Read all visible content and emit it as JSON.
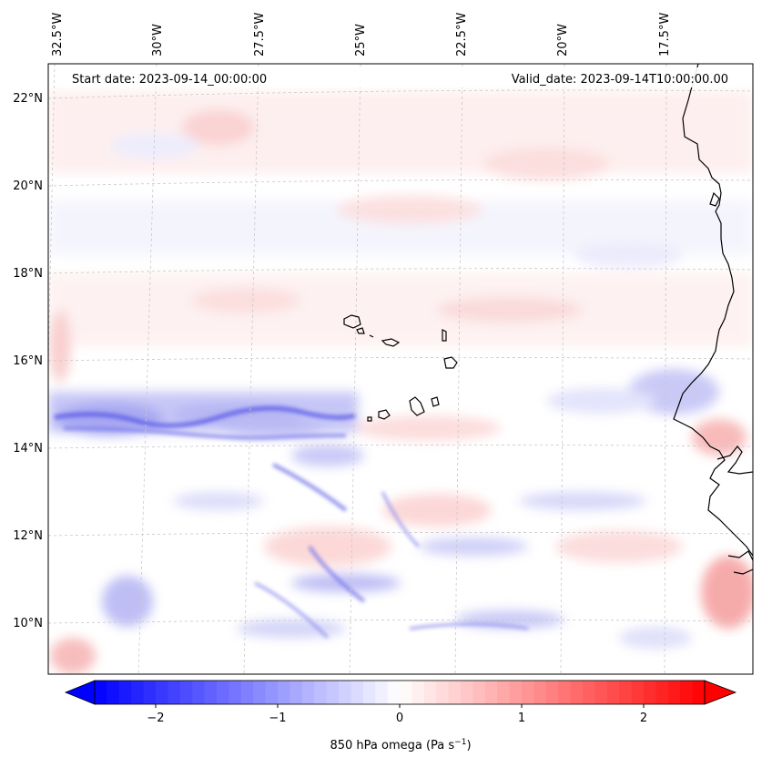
{
  "map": {
    "lon_labels": [
      "32.5°W",
      "30°W",
      "27.5°W",
      "25°W",
      "22.5°W",
      "20°W",
      "17.5°W"
    ],
    "lat_labels": [
      "22°N",
      "20°N",
      "18°N",
      "16°N",
      "14°N",
      "12°N",
      "10°N"
    ],
    "start_date": "Start date: 2023-09-14_00:00:00",
    "valid_date": "Valid_date: 2023-09-14T10:00:00.00"
  },
  "colorbar": {
    "ticks": [
      "−2",
      "−1",
      "0",
      "1",
      "2"
    ],
    "tick_values": [
      -2,
      -1,
      0,
      1,
      2
    ],
    "range": [
      -2.5,
      2.5
    ],
    "label_main": "850 hPa omega (Pa s",
    "label_exp": "−1",
    "label_close": ")",
    "colors": {
      "negative": "#0000ff",
      "zero": "#ffffff",
      "positive": "#ff0000"
    }
  },
  "style": {
    "coastline": "#000000",
    "gridline": "#c8c8c8"
  }
}
